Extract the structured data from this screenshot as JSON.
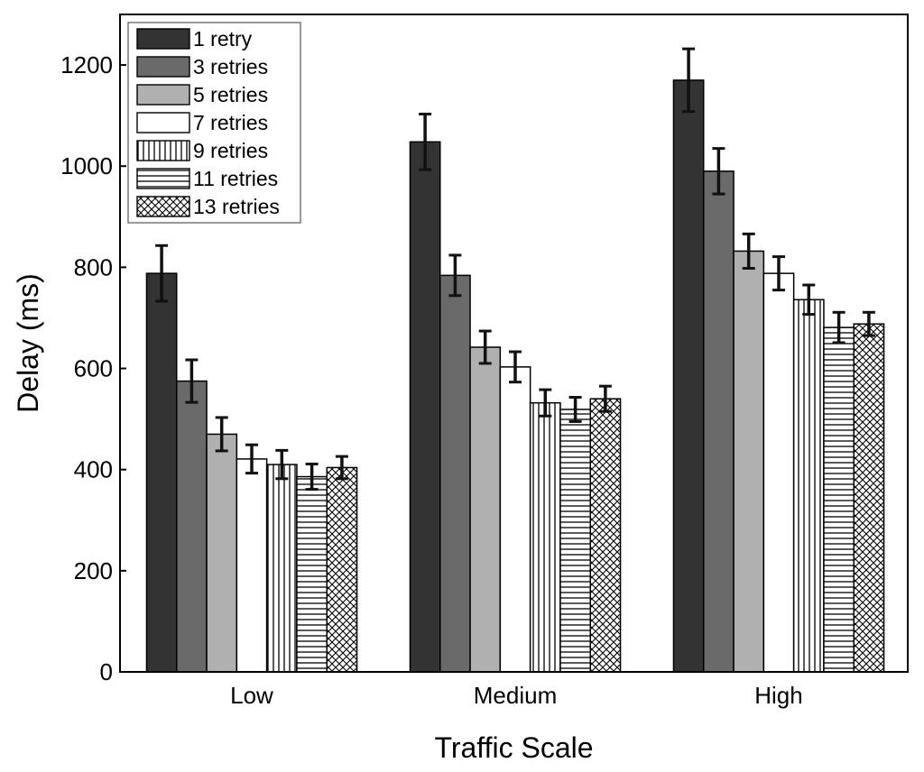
{
  "chart_data": {
    "type": "bar",
    "title": "",
    "xlabel": "Traffic Scale",
    "ylabel": "Delay (ms)",
    "ylim": [
      0,
      1300
    ],
    "yticks": [
      0,
      200,
      400,
      600,
      800,
      1000,
      1200
    ],
    "grid": false,
    "legend_position": "top-left",
    "categories": [
      "Low",
      "Medium",
      "High"
    ],
    "series": [
      {
        "name": "1 retry",
        "color": "#333333",
        "pattern": "solid",
        "values": [
          788,
          1048,
          1170
        ],
        "errors": [
          55,
          55,
          62
        ]
      },
      {
        "name": "3 retries",
        "color": "#6a6a6a",
        "pattern": "solid",
        "values": [
          575,
          784,
          990
        ],
        "errors": [
          42,
          40,
          45
        ]
      },
      {
        "name": "5 retries",
        "color": "#b0b0b0",
        "pattern": "solid",
        "values": [
          470,
          642,
          832
        ],
        "errors": [
          33,
          32,
          34
        ]
      },
      {
        "name": "7 retries",
        "color": "#ffffff",
        "pattern": "solid",
        "values": [
          421,
          603,
          788
        ],
        "errors": [
          28,
          30,
          33
        ]
      },
      {
        "name": "9 retries",
        "color": "#ffffff",
        "pattern": "vertical-lines",
        "values": [
          410,
          532,
          736
        ],
        "errors": [
          28,
          26,
          29
        ]
      },
      {
        "name": "11 retries",
        "color": "#ffffff",
        "pattern": "horizontal-lines",
        "values": [
          386,
          519,
          681
        ],
        "errors": [
          25,
          24,
          30
        ]
      },
      {
        "name": "13 retries",
        "color": "#ffffff",
        "pattern": "crosshatch",
        "values": [
          404,
          540,
          688
        ],
        "errors": [
          22,
          25,
          23
        ]
      }
    ]
  }
}
